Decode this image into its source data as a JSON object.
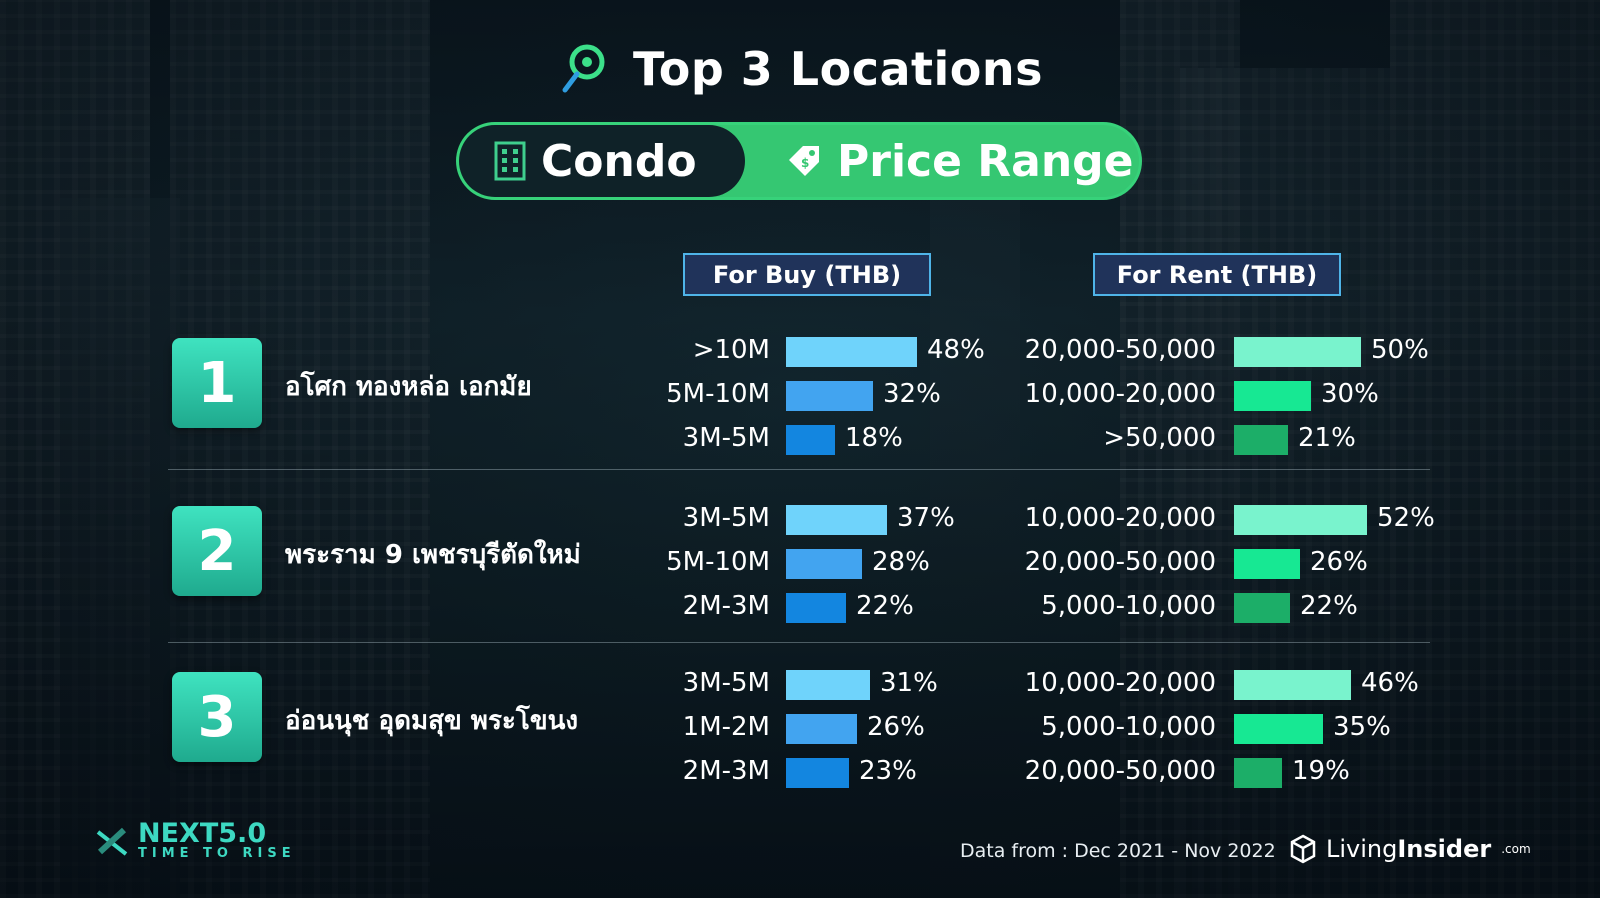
{
  "header": {
    "title": "Top 3 Locations",
    "pill_left": "Condo",
    "pill_right": "Price Range"
  },
  "columns": {
    "buy": "For Buy (THB)",
    "rent": "For Rent (THB)"
  },
  "colors": {
    "buy_bars": [
      "#6fd3fb",
      "#42a4f0",
      "#1386e0"
    ],
    "rent_bars": [
      "#79f3cd",
      "#17e893",
      "#1cae68"
    ],
    "accent_green": "#35c772",
    "rank_box": "#2cc7a6"
  },
  "chart_data": [
    {
      "type": "bar",
      "rank": "1",
      "location": "อโศก ทองหล่อ เอกมัย",
      "buy": {
        "categories": [
          ">10M",
          "5M-10M",
          "3M-5M"
        ],
        "values": [
          48,
          32,
          18
        ],
        "labels": [
          "48%",
          "32%",
          "18%"
        ]
      },
      "rent": {
        "categories": [
          "20,000-50,000",
          "10,000-20,000",
          ">50,000"
        ],
        "values": [
          50,
          30,
          21
        ],
        "labels": [
          "50%",
          "30%",
          "21%"
        ]
      }
    },
    {
      "type": "bar",
      "rank": "2",
      "location": "พระราม 9 เพชรบุรีตัดใหม่",
      "buy": {
        "categories": [
          "3M-5M",
          "5M-10M",
          "2M-3M"
        ],
        "values": [
          37,
          28,
          22
        ],
        "labels": [
          "37%",
          "28%",
          "22%"
        ]
      },
      "rent": {
        "categories": [
          "10,000-20,000",
          "20,000-50,000",
          "5,000-10,000"
        ],
        "values": [
          52,
          26,
          22
        ],
        "labels": [
          "52%",
          "26%",
          "22%"
        ]
      }
    },
    {
      "type": "bar",
      "rank": "3",
      "location": "อ่อนนุช อุดมสุข พระโขนง",
      "buy": {
        "categories": [
          "3M-5M",
          "1M-2M",
          "2M-3M"
        ],
        "values": [
          31,
          26,
          23
        ],
        "labels": [
          "31%",
          "26%",
          "23%"
        ]
      },
      "rent": {
        "categories": [
          "10,000-20,000",
          "5,000-10,000",
          "20,000-50,000"
        ],
        "values": [
          46,
          35,
          19
        ],
        "labels": [
          "46%",
          "35%",
          "19%"
        ]
      }
    }
  ],
  "footer": {
    "date_range": "Data from : Dec 2021 - Nov 2022",
    "next_logo": "NEXT5.0",
    "next_tagline": "TIME TO RISE",
    "living": "Living",
    "insider": "Insider",
    "com": ".com"
  },
  "icons": {
    "title": "location-pin-icon",
    "condo": "building-icon",
    "price": "price-tag-icon"
  }
}
